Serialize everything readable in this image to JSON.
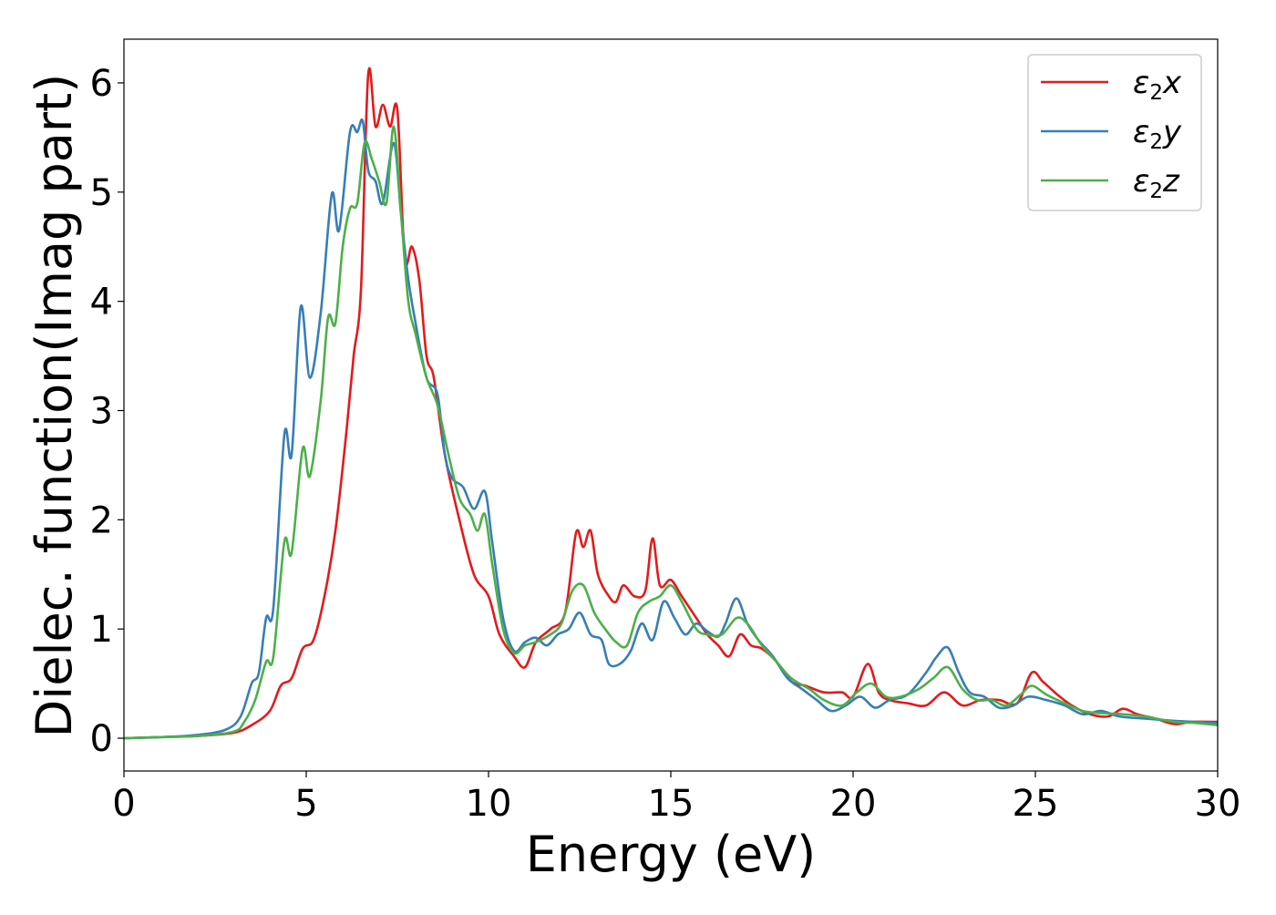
{
  "chart_data": {
    "type": "line",
    "title": "",
    "xlabel": "Energy (eV)",
    "ylabel": "Dielec. function(Imag part)",
    "xlim": [
      0,
      30
    ],
    "ylim": [
      -0.3,
      6.4
    ],
    "xticks": [
      0,
      5,
      10,
      15,
      20,
      25,
      30
    ],
    "yticks": [
      0,
      1,
      2,
      3,
      4,
      5,
      6
    ],
    "grid": false,
    "legend": "top-right",
    "series": [
      {
        "name": "ε2x",
        "name_main": "ε",
        "name_sub": "2",
        "name_suffix": "x",
        "color": "#e41a1c",
        "points": [
          [
            0,
            0
          ],
          [
            1,
            0.01
          ],
          [
            2,
            0.02
          ],
          [
            3,
            0.05
          ],
          [
            3.5,
            0.12
          ],
          [
            4,
            0.25
          ],
          [
            4.3,
            0.48
          ],
          [
            4.6,
            0.55
          ],
          [
            4.9,
            0.82
          ],
          [
            5.2,
            0.9
          ],
          [
            5.5,
            1.3
          ],
          [
            5.8,
            1.9
          ],
          [
            6.1,
            2.8
          ],
          [
            6.3,
            3.5
          ],
          [
            6.5,
            4.1
          ],
          [
            6.7,
            6.08
          ],
          [
            6.9,
            5.6
          ],
          [
            7.1,
            5.8
          ],
          [
            7.3,
            5.6
          ],
          [
            7.5,
            5.75
          ],
          [
            7.7,
            4.4
          ],
          [
            7.9,
            4.5
          ],
          [
            8.1,
            4.2
          ],
          [
            8.3,
            3.5
          ],
          [
            8.5,
            3.3
          ],
          [
            8.8,
            2.6
          ],
          [
            9.2,
            2.0
          ],
          [
            9.6,
            1.5
          ],
          [
            10.0,
            1.3
          ],
          [
            10.3,
            0.95
          ],
          [
            10.7,
            0.75
          ],
          [
            11.0,
            0.65
          ],
          [
            11.3,
            0.88
          ],
          [
            11.7,
            1.0
          ],
          [
            12.1,
            1.15
          ],
          [
            12.4,
            1.88
          ],
          [
            12.6,
            1.75
          ],
          [
            12.8,
            1.9
          ],
          [
            13.0,
            1.5
          ],
          [
            13.3,
            1.3
          ],
          [
            13.5,
            1.25
          ],
          [
            13.7,
            1.4
          ],
          [
            14.0,
            1.3
          ],
          [
            14.3,
            1.35
          ],
          [
            14.5,
            1.83
          ],
          [
            14.7,
            1.4
          ],
          [
            15.0,
            1.45
          ],
          [
            15.3,
            1.3
          ],
          [
            15.7,
            1.1
          ],
          [
            16.0,
            0.95
          ],
          [
            16.3,
            0.85
          ],
          [
            16.6,
            0.75
          ],
          [
            16.9,
            0.95
          ],
          [
            17.2,
            0.85
          ],
          [
            17.5,
            0.82
          ],
          [
            17.9,
            0.7
          ],
          [
            18.3,
            0.52
          ],
          [
            18.7,
            0.48
          ],
          [
            19.2,
            0.42
          ],
          [
            19.7,
            0.42
          ],
          [
            20.0,
            0.38
          ],
          [
            20.4,
            0.68
          ],
          [
            20.7,
            0.42
          ],
          [
            21.0,
            0.35
          ],
          [
            21.5,
            0.32
          ],
          [
            22.0,
            0.3
          ],
          [
            22.5,
            0.42
          ],
          [
            23.0,
            0.3
          ],
          [
            23.5,
            0.35
          ],
          [
            24.0,
            0.35
          ],
          [
            24.5,
            0.32
          ],
          [
            24.9,
            0.6
          ],
          [
            25.2,
            0.52
          ],
          [
            25.6,
            0.4
          ],
          [
            26.0,
            0.3
          ],
          [
            26.5,
            0.22
          ],
          [
            27.0,
            0.2
          ],
          [
            27.4,
            0.27
          ],
          [
            27.8,
            0.22
          ],
          [
            28.3,
            0.18
          ],
          [
            28.8,
            0.13
          ],
          [
            29.3,
            0.15
          ],
          [
            30.0,
            0.15
          ]
        ]
      },
      {
        "name": "ε2y",
        "name_main": "ε",
        "name_sub": "2",
        "name_suffix": "y",
        "color": "#377eb8",
        "points": [
          [
            0,
            0
          ],
          [
            1,
            0.01
          ],
          [
            2,
            0.03
          ],
          [
            2.8,
            0.08
          ],
          [
            3.2,
            0.2
          ],
          [
            3.5,
            0.5
          ],
          [
            3.7,
            0.6
          ],
          [
            3.9,
            1.1
          ],
          [
            4.1,
            1.2
          ],
          [
            4.4,
            2.78
          ],
          [
            4.6,
            2.6
          ],
          [
            4.85,
            3.95
          ],
          [
            5.1,
            3.3
          ],
          [
            5.4,
            3.9
          ],
          [
            5.7,
            4.98
          ],
          [
            5.9,
            4.65
          ],
          [
            6.2,
            5.55
          ],
          [
            6.4,
            5.55
          ],
          [
            6.55,
            5.65
          ],
          [
            6.7,
            5.2
          ],
          [
            6.9,
            5.1
          ],
          [
            7.1,
            4.9
          ],
          [
            7.4,
            5.45
          ],
          [
            7.6,
            4.8
          ],
          [
            7.8,
            4.2
          ],
          [
            8.0,
            3.8
          ],
          [
            8.3,
            3.3
          ],
          [
            8.6,
            3.15
          ],
          [
            8.8,
            2.6
          ],
          [
            9.0,
            2.38
          ],
          [
            9.3,
            2.3
          ],
          [
            9.6,
            2.1
          ],
          [
            9.9,
            2.26
          ],
          [
            10.1,
            1.8
          ],
          [
            10.4,
            1.1
          ],
          [
            10.7,
            0.8
          ],
          [
            11.0,
            0.88
          ],
          [
            11.3,
            0.92
          ],
          [
            11.6,
            0.85
          ],
          [
            11.9,
            0.95
          ],
          [
            12.2,
            1.0
          ],
          [
            12.5,
            1.15
          ],
          [
            12.8,
            0.95
          ],
          [
            13.1,
            0.9
          ],
          [
            13.3,
            0.68
          ],
          [
            13.6,
            0.68
          ],
          [
            13.9,
            0.8
          ],
          [
            14.2,
            1.05
          ],
          [
            14.5,
            0.9
          ],
          [
            14.8,
            1.25
          ],
          [
            15.1,
            1.1
          ],
          [
            15.4,
            0.95
          ],
          [
            15.7,
            1.05
          ],
          [
            16.0,
            0.98
          ],
          [
            16.3,
            0.93
          ],
          [
            16.5,
            1.05
          ],
          [
            16.8,
            1.28
          ],
          [
            17.1,
            1.05
          ],
          [
            17.4,
            0.9
          ],
          [
            17.8,
            0.75
          ],
          [
            18.2,
            0.55
          ],
          [
            18.6,
            0.45
          ],
          [
            19.0,
            0.35
          ],
          [
            19.4,
            0.25
          ],
          [
            19.8,
            0.3
          ],
          [
            20.2,
            0.38
          ],
          [
            20.6,
            0.28
          ],
          [
            21.0,
            0.35
          ],
          [
            21.5,
            0.4
          ],
          [
            22.0,
            0.6
          ],
          [
            22.3,
            0.75
          ],
          [
            22.6,
            0.83
          ],
          [
            22.9,
            0.6
          ],
          [
            23.2,
            0.42
          ],
          [
            23.6,
            0.38
          ],
          [
            24.0,
            0.28
          ],
          [
            24.4,
            0.3
          ],
          [
            24.8,
            0.38
          ],
          [
            25.3,
            0.35
          ],
          [
            25.8,
            0.3
          ],
          [
            26.3,
            0.22
          ],
          [
            26.8,
            0.25
          ],
          [
            27.3,
            0.2
          ],
          [
            28.0,
            0.18
          ],
          [
            28.8,
            0.16
          ],
          [
            29.4,
            0.15
          ],
          [
            30.0,
            0.14
          ]
        ]
      },
      {
        "name": "ε2z",
        "name_main": "ε",
        "name_sub": "2",
        "name_suffix": "z",
        "color": "#4daf4a",
        "points": [
          [
            0,
            0
          ],
          [
            1,
            0.01
          ],
          [
            2,
            0.02
          ],
          [
            3,
            0.06
          ],
          [
            3.3,
            0.15
          ],
          [
            3.6,
            0.35
          ],
          [
            3.9,
            0.7
          ],
          [
            4.1,
            0.75
          ],
          [
            4.4,
            1.8
          ],
          [
            4.6,
            1.7
          ],
          [
            4.9,
            2.65
          ],
          [
            5.1,
            2.4
          ],
          [
            5.4,
            3.1
          ],
          [
            5.6,
            3.85
          ],
          [
            5.8,
            3.8
          ],
          [
            6.0,
            4.5
          ],
          [
            6.2,
            4.85
          ],
          [
            6.4,
            4.9
          ],
          [
            6.6,
            5.45
          ],
          [
            6.8,
            5.3
          ],
          [
            7.0,
            5.1
          ],
          [
            7.2,
            4.9
          ],
          [
            7.4,
            5.6
          ],
          [
            7.6,
            4.8
          ],
          [
            7.8,
            4.0
          ],
          [
            8.0,
            3.7
          ],
          [
            8.3,
            3.3
          ],
          [
            8.6,
            3.05
          ],
          [
            8.9,
            2.6
          ],
          [
            9.2,
            2.2
          ],
          [
            9.5,
            2.05
          ],
          [
            9.7,
            1.9
          ],
          [
            9.9,
            2.05
          ],
          [
            10.1,
            1.6
          ],
          [
            10.4,
            1.0
          ],
          [
            10.7,
            0.78
          ],
          [
            11.0,
            0.85
          ],
          [
            11.3,
            0.88
          ],
          [
            11.7,
            0.95
          ],
          [
            12.0,
            1.05
          ],
          [
            12.3,
            1.35
          ],
          [
            12.6,
            1.4
          ],
          [
            12.9,
            1.15
          ],
          [
            13.2,
            1.0
          ],
          [
            13.5,
            0.88
          ],
          [
            13.8,
            0.85
          ],
          [
            14.1,
            1.15
          ],
          [
            14.4,
            1.25
          ],
          [
            14.7,
            1.3
          ],
          [
            15.0,
            1.4
          ],
          [
            15.3,
            1.25
          ],
          [
            15.7,
            1.0
          ],
          [
            16.0,
            0.95
          ],
          [
            16.4,
            0.95
          ],
          [
            16.8,
            1.1
          ],
          [
            17.1,
            1.05
          ],
          [
            17.5,
            0.85
          ],
          [
            17.9,
            0.7
          ],
          [
            18.3,
            0.55
          ],
          [
            18.8,
            0.45
          ],
          [
            19.2,
            0.35
          ],
          [
            19.7,
            0.3
          ],
          [
            20.1,
            0.42
          ],
          [
            20.5,
            0.5
          ],
          [
            20.9,
            0.38
          ],
          [
            21.3,
            0.38
          ],
          [
            21.8,
            0.45
          ],
          [
            22.2,
            0.55
          ],
          [
            22.6,
            0.65
          ],
          [
            23.0,
            0.45
          ],
          [
            23.4,
            0.35
          ],
          [
            23.8,
            0.35
          ],
          [
            24.2,
            0.3
          ],
          [
            24.6,
            0.4
          ],
          [
            24.9,
            0.48
          ],
          [
            25.3,
            0.4
          ],
          [
            25.8,
            0.32
          ],
          [
            26.3,
            0.25
          ],
          [
            26.8,
            0.23
          ],
          [
            27.4,
            0.22
          ],
          [
            28.0,
            0.2
          ],
          [
            28.8,
            0.15
          ],
          [
            29.4,
            0.14
          ],
          [
            30.0,
            0.12
          ]
        ]
      }
    ]
  }
}
